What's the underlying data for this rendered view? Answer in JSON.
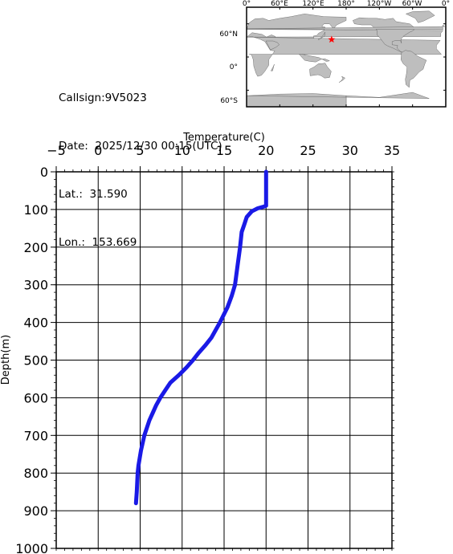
{
  "info": {
    "callsign": "Callsign:9V5023",
    "date": "Date:  2025/12/30 00:15(UTC)",
    "lat": "Lat.:  31.590",
    "lon": "Lon.:  153.669"
  },
  "map": {
    "lon_labels": [
      "0°",
      "60°E",
      "120°E",
      "180°",
      "120°W",
      "60°W",
      "0°"
    ],
    "lat_labels": [
      "60°N",
      "0°",
      "60°S"
    ],
    "marker": {
      "lat": 31.59,
      "lon": 153.669,
      "color": "#ff0000"
    },
    "ocean_color": "#ffffff",
    "land_color": "#bebebe"
  },
  "chart_data": {
    "type": "line",
    "xlabel": "Temperature(C)",
    "ylabel": "Depth(m)",
    "xlim": [
      -5,
      35
    ],
    "ylim": [
      0,
      1000
    ],
    "x_axis_position": "top",
    "y_inverted": true,
    "grid": true,
    "x_ticks": [
      "-5",
      "0",
      "5",
      "10",
      "15",
      "20",
      "25",
      "30",
      "35"
    ],
    "y_ticks": [
      "0",
      "100",
      "200",
      "300",
      "400",
      "500",
      "600",
      "700",
      "800",
      "900",
      "1000"
    ],
    "line_color": "#1a1ae6",
    "series": [
      {
        "x": [
          20.0,
          20.0,
          19.8,
          19.0,
          18.3,
          17.7,
          17.4,
          17.1,
          16.9,
          16.6,
          16.3,
          15.9,
          15.4,
          14.5,
          13.5,
          12.8,
          12.0,
          11.3,
          10.5,
          9.6,
          8.6,
          8.0,
          7.4,
          6.9,
          6.5,
          6.1,
          5.5,
          5.3,
          5.1,
          4.8,
          4.7,
          4.6,
          4.5
        ],
        "y": [
          0,
          90,
          92,
          97,
          105,
          120,
          140,
          160,
          200,
          250,
          300,
          330,
          360,
          400,
          440,
          460,
          480,
          500,
          520,
          540,
          560,
          580,
          600,
          620,
          640,
          660,
          700,
          720,
          740,
          780,
          800,
          850,
          880
        ]
      }
    ]
  }
}
